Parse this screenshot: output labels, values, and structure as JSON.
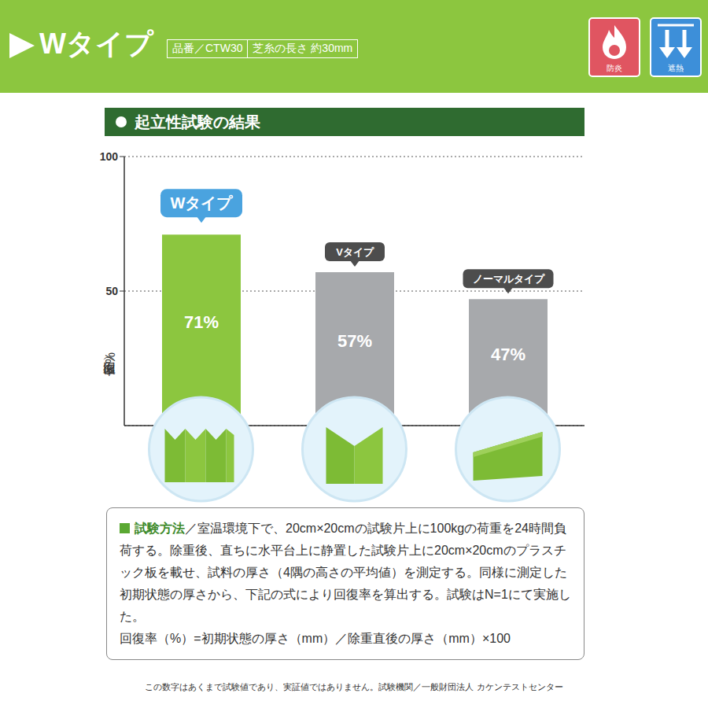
{
  "header": {
    "title": "Wタイプ",
    "product_code": "品番／CTW30",
    "pile_length": "芝糸の長さ 約30mm",
    "icons": [
      "防炎",
      "遮熱"
    ]
  },
  "chart_data": {
    "type": "bar",
    "title": "起立性試験の結果",
    "y_label": "回復率（%）",
    "categories": [
      "Wタイプ",
      "Vタイプ",
      "ノーマルタイプ"
    ],
    "values": [
      71,
      57,
      47
    ],
    "value_labels": [
      "71%",
      "57%",
      "47%"
    ],
    "colors": [
      "#8cc63f",
      "#a7a9ac",
      "#a7a9ac"
    ],
    "ylim": [
      0,
      100
    ],
    "yticks": [
      50,
      100
    ],
    "grid": true,
    "data_labels": true,
    "tick_labels": "y"
  },
  "test_method": {
    "heading": "試験方法",
    "text": "／室温環境下で、20cm×20cmの試験片上に100kgの荷重を24時間負荷する。除重後、直ちに水平台上に静置した試験片上に20cm×20cmのプラスチック板を載せ、試料の厚さ（4隅の高さの平均値）を測定する。同様に測定した初期状態の厚さから、下記の式により回復率を算出する。試験はN=1にて実施した。",
    "formula": "回復率（%）=初期状態の厚さ（mm）／除重直後の厚さ（mm）×100"
  },
  "footnote": "この数字はあくまで試験値であり、実証値ではありません。試験機関／一般財団法人 カケンテストセンター"
}
